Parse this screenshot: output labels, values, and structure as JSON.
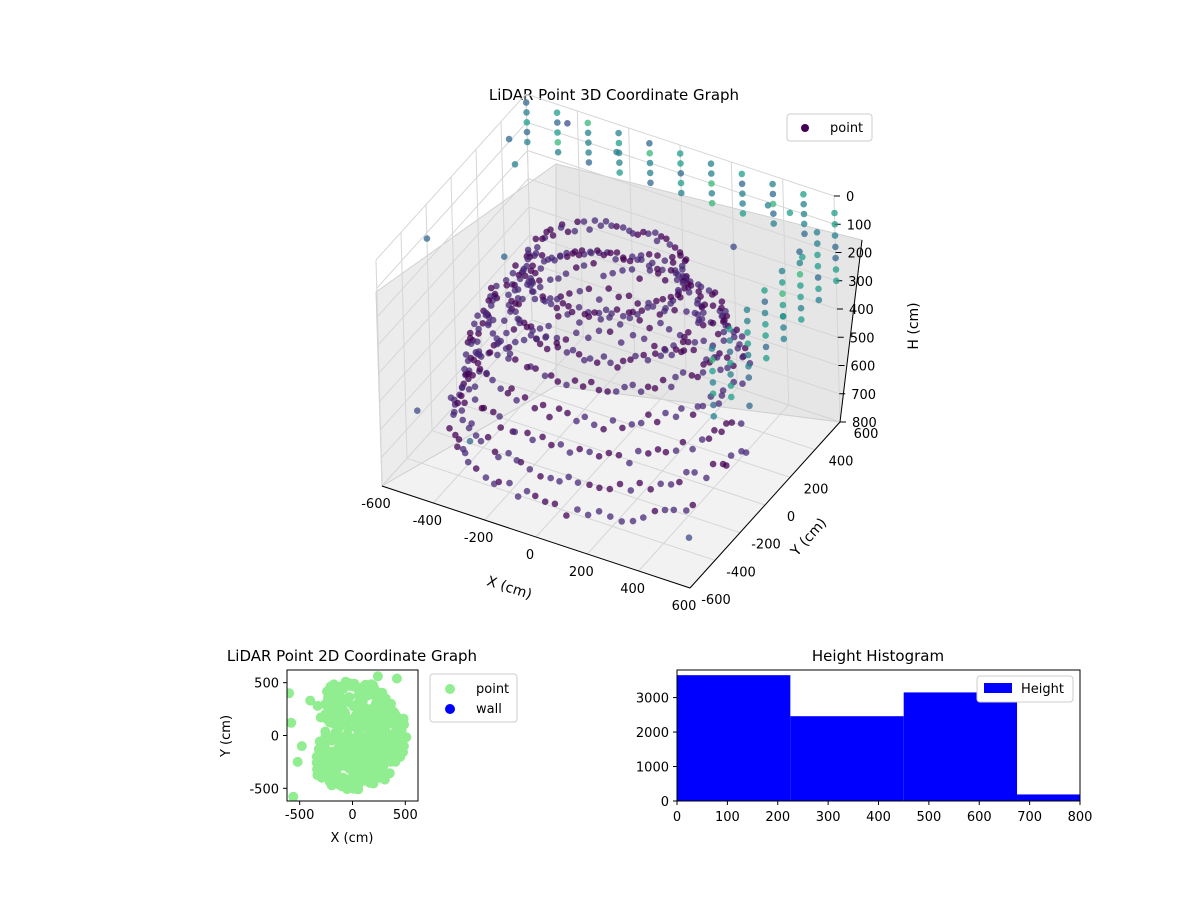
{
  "chart_data": [
    {
      "type": "scatter",
      "projection": "3d",
      "title": "LiDAR Point 3D Coordinate Graph",
      "xlabel": "X (cm)",
      "ylabel": "Y (cm)",
      "zlabel": "H (cm)",
      "xlim": [
        -600,
        600
      ],
      "ylim": [
        -600,
        600
      ],
      "zlim": [
        800,
        0
      ],
      "xticks": [
        "-600",
        "-400",
        "-200",
        "0",
        "200",
        "400",
        "600"
      ],
      "yticks": [
        "-600",
        "-400",
        "-200",
        "0",
        "200",
        "400",
        "600"
      ],
      "zticks": [
        "0",
        "100",
        "200",
        "300",
        "400",
        "500",
        "600",
        "700",
        "800"
      ],
      "colormap": "viridis",
      "grid": true,
      "legend": {
        "placement": "top-right",
        "entries": [
          {
            "name": "point",
            "color": "#440154"
          }
        ]
      },
      "series": [
        {
          "name": "point",
          "description_of_values": "points on concentric rings around the sensor",
          "rings": [
            {
              "radius": 280,
              "h": 150,
              "arc_deg": [
                0,
                360
              ]
            },
            {
              "radius": 330,
              "h": 280,
              "arc_deg": [
                10,
                360
              ]
            },
            {
              "radius": 420,
              "h": 330,
              "arc_deg": [
                20,
                360
              ]
            },
            {
              "radius": 470,
              "h": 420,
              "arc_deg": [
                30,
                360
              ]
            },
            {
              "radius": 500,
              "h": 520,
              "arc_deg": [
                40,
                360
              ]
            },
            {
              "radius": 520,
              "h": 620,
              "arc_deg": [
                60,
                360
              ]
            },
            {
              "radius": 560,
              "h": 700,
              "arc_deg": [
                60,
                330
              ]
            }
          ],
          "outliers": [
            {
              "x": -560,
              "y": 380,
              "h": 40
            },
            {
              "x": -420,
              "y": 560,
              "h": 30
            },
            {
              "x": 380,
              "y": 520,
              "h": 60
            },
            {
              "x": 560,
              "y": 420,
              "h": 140
            },
            {
              "x": 600,
              "y": 180,
              "h": 220
            },
            {
              "x": -600,
              "y": -200,
              "h": 120
            },
            {
              "x": -500,
              "y": 200,
              "h": 350
            },
            {
              "x": 200,
              "y": 600,
              "h": 300
            },
            {
              "x": 600,
              "y": -100,
              "h": 400
            },
            {
              "x": -300,
              "y": -500,
              "h": 600
            },
            {
              "x": -600,
              "y": 500,
              "h": 200
            },
            {
              "x": 450,
              "y": 550,
              "h": 80
            },
            {
              "x": -250,
              "y": 600,
              "h": 100
            },
            {
              "x": 500,
              "y": -400,
              "h": 750
            },
            {
              "x": -580,
              "y": -350,
              "h": 650
            }
          ]
        }
      ]
    },
    {
      "type": "scatter",
      "title": "LiDAR Point 2D Coordinate Graph",
      "xlabel": "X (cm)",
      "ylabel": "Y (cm)",
      "xlim": [
        -620,
        620
      ],
      "ylim": [
        -620,
        620
      ],
      "xticks": [
        "-500",
        "0",
        "500"
      ],
      "yticks": [
        "500",
        "0",
        "-500"
      ],
      "grid": false,
      "legend": {
        "placement": "outside-right",
        "entries": [
          {
            "name": "point",
            "color": "#90ee90"
          },
          {
            "name": "wall",
            "color": "#0000ff"
          }
        ]
      },
      "series": [
        {
          "name": "point",
          "color": "#90ee90",
          "region": "filled disc-like cloud, radius ~520, x mostly > -350",
          "values": [
            {
              "x": -600,
              "y": 400
            },
            {
              "x": -580,
              "y": 120
            },
            {
              "x": -400,
              "y": 330
            },
            {
              "x": -330,
              "y": 280
            },
            {
              "x": -520,
              "y": -250
            },
            {
              "x": -560,
              "y": -580
            },
            {
              "x": -480,
              "y": -100
            },
            {
              "x": -300,
              "y": 170
            },
            {
              "x": 420,
              "y": 540
            },
            {
              "x": 240,
              "y": 560
            }
          ]
        },
        {
          "name": "wall",
          "color": "#0000ff",
          "values": []
        }
      ]
    },
    {
      "type": "bar",
      "title": "Height Histogram",
      "xlabel": "",
      "ylabel": "",
      "xlim": [
        0,
        800
      ],
      "ylim": [
        0,
        3800
      ],
      "xticks": [
        "0",
        "100",
        "200",
        "300",
        "400",
        "500",
        "600",
        "700",
        "800"
      ],
      "yticks": [
        "0",
        "1000",
        "2000",
        "3000"
      ],
      "grid": false,
      "legend": {
        "placement": "top-right",
        "entries": [
          {
            "name": "Height",
            "color": "#0000ff"
          }
        ]
      },
      "bins": [
        {
          "from": 0,
          "to": 225,
          "count": 3650
        },
        {
          "from": 225,
          "to": 450,
          "count": 2460
        },
        {
          "from": 450,
          "to": 675,
          "count": 3150
        },
        {
          "from": 675,
          "to": 800,
          "count": 190
        }
      ],
      "series": [
        {
          "name": "Height",
          "color": "#0000ff"
        }
      ]
    }
  ]
}
